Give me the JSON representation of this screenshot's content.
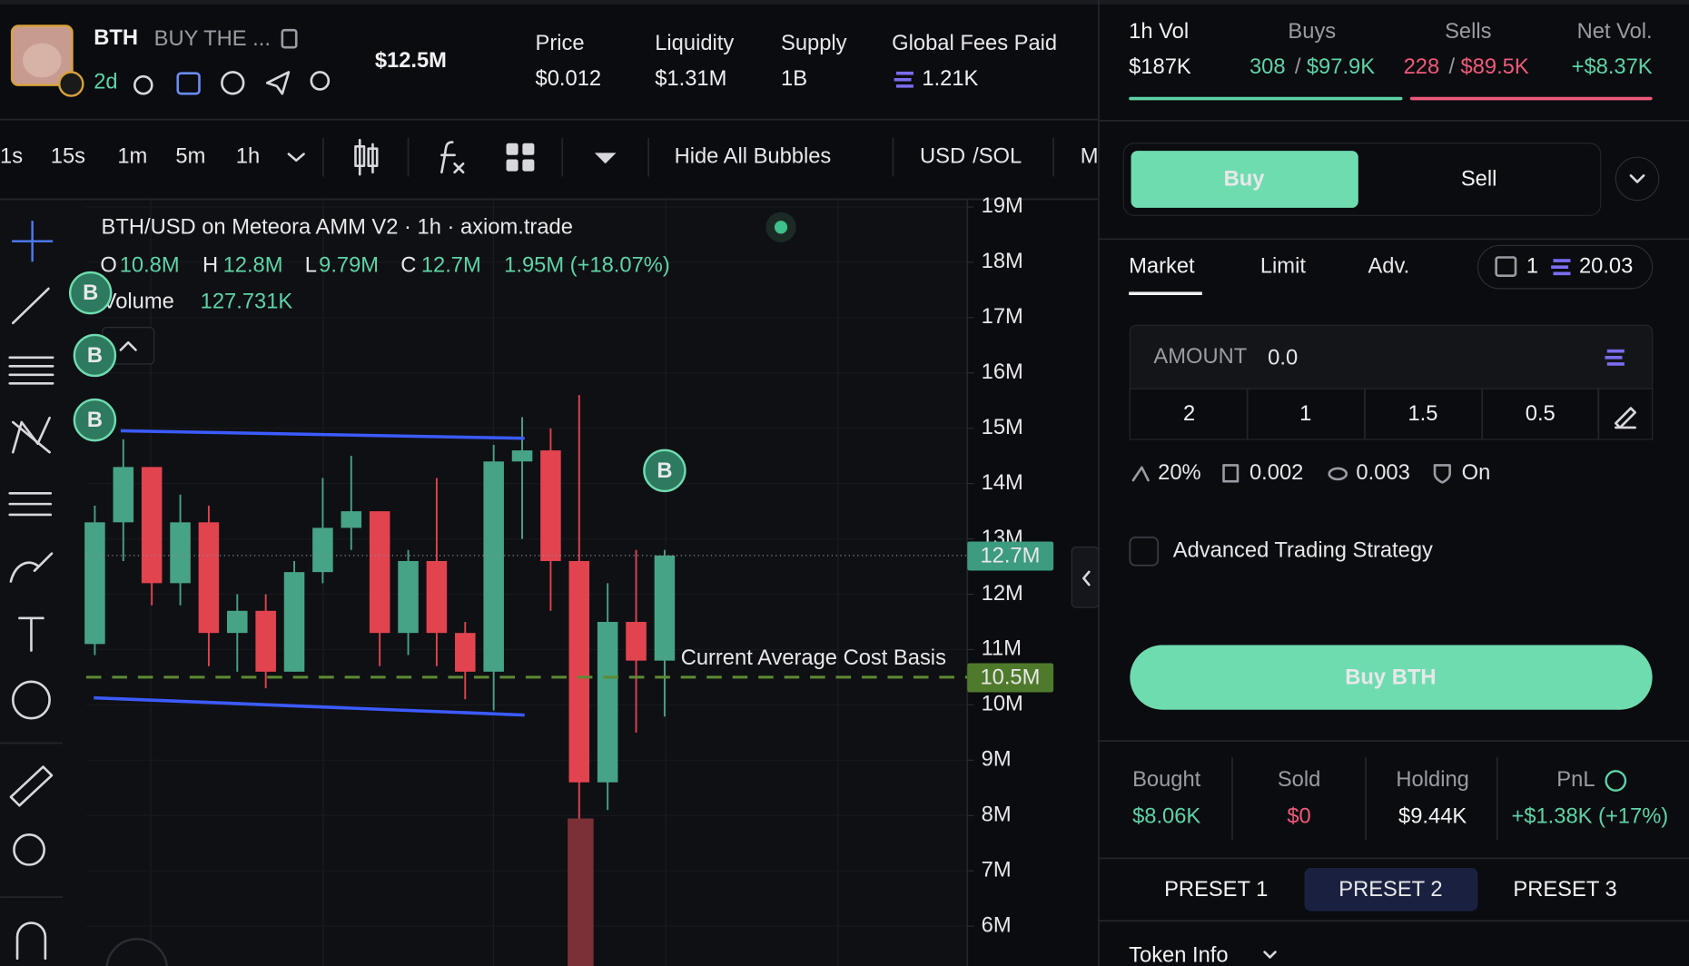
{
  "header": {
    "ticker": "BTH",
    "name": "BUY THE ...",
    "age": "2d",
    "market_cap": "$12.5M",
    "stats": [
      {
        "label": "Price",
        "value": "$0.012"
      },
      {
        "label": "Liquidity",
        "value": "$1.31M"
      },
      {
        "label": "Supply",
        "value": "1B"
      },
      {
        "label": "Global Fees Paid",
        "value": "1.21K"
      }
    ]
  },
  "toolbar": {
    "intervals": [
      "1s",
      "15s",
      "1m",
      "5m",
      "1h"
    ],
    "hide_bubbles": "Hide All Bubbles",
    "currency": "USD",
    "currency_alt": "/SOL",
    "more": "M"
  },
  "chart_data": {
    "type": "candlestick",
    "title": "BTH/USD on Meteora AMM V2 · 1h · axiom.trade",
    "legend": {
      "o_label": "O",
      "o": "10.8M",
      "h_label": "H",
      "h": "12.8M",
      "l_label": "L",
      "l": "9.79M",
      "c_label": "C",
      "c": "12.7M",
      "change": "1.95M (+18.07%)"
    },
    "volume_label": "Volume",
    "volume_value": "127.731K",
    "open": [
      11.1,
      13.3,
      14.3,
      12.2,
      13.3,
      11.3,
      11.7,
      10.6,
      12.4,
      13.2,
      13.5,
      11.3,
      12.6,
      11.3,
      10.6,
      14.4,
      14.6,
      12.6,
      8.6,
      11.5,
      10.8
    ],
    "high": [
      13.6,
      14.8,
      14.3,
      13.8,
      13.6,
      12.0,
      12.0,
      12.6,
      14.1,
      14.5,
      13.5,
      12.8,
      14.1,
      11.5,
      14.7,
      15.2,
      15.0,
      15.6,
      12.2,
      12.8,
      12.8
    ],
    "low": [
      10.9,
      12.6,
      11.8,
      11.8,
      10.7,
      10.6,
      10.3,
      10.6,
      12.2,
      12.8,
      10.7,
      10.9,
      10.7,
      10.1,
      9.9,
      13.0,
      11.7,
      7.9,
      8.1,
      9.5,
      9.79
    ],
    "close": [
      13.3,
      14.3,
      12.2,
      13.3,
      11.3,
      11.7,
      10.6,
      12.4,
      13.2,
      13.5,
      11.3,
      12.6,
      11.3,
      10.6,
      14.4,
      14.6,
      12.6,
      8.6,
      11.5,
      10.8,
      12.7
    ],
    "up_color": "#47a386",
    "down_color": "#e2444f",
    "ylim": [
      5.28,
      19.14
    ],
    "yticks": [
      {
        "value": 19,
        "label": "19M"
      },
      {
        "value": 18,
        "label": "18M"
      },
      {
        "value": 17,
        "label": "17M"
      },
      {
        "value": 16,
        "label": "16M"
      },
      {
        "value": 15,
        "label": "15M"
      },
      {
        "value": 14,
        "label": "14M"
      },
      {
        "value": 13,
        "label": "13M"
      },
      {
        "value": 12,
        "label": "12M"
      },
      {
        "value": 11,
        "label": "11M"
      },
      {
        "value": 10,
        "label": "10M"
      },
      {
        "value": 9,
        "label": "9M"
      },
      {
        "value": 8,
        "label": "8M"
      },
      {
        "value": 7,
        "label": "7M"
      },
      {
        "value": 6,
        "label": "6M"
      }
    ],
    "grid": true,
    "price_line": {
      "value": 12.7,
      "label": "12.7M"
    },
    "cost_basis": {
      "value": 10.5,
      "label": "10.5M",
      "text": "Current Average Cost Basis"
    },
    "bubble_label": "B"
  },
  "volume": {
    "label": "1h Vol",
    "value": "$187K",
    "buys_label": "Buys",
    "buys_count": "308",
    "buys_amount": "$97.9K",
    "sells_label": "Sells",
    "sells_count": "228",
    "sells_amount": "$89.5K",
    "separator": "/",
    "net_label": "Net Vol.",
    "net_value": "+$8.37K"
  },
  "trade": {
    "buy_tab": "Buy",
    "sell_tab": "Sell",
    "order_tabs": [
      "Market",
      "Limit",
      "Adv."
    ],
    "wallets": "1",
    "balance": "20.03",
    "amount_label": "AMOUNT",
    "amount_placeholder": "0.0",
    "quick_amounts": [
      "2",
      "1",
      "1.5",
      "0.5"
    ],
    "slippage": "20%",
    "priority": "0.002",
    "bribe": "0.003",
    "mev": "On",
    "advanced": "Advanced Trading Strategy",
    "submit": "Buy BTH"
  },
  "position": [
    {
      "label": "Bought",
      "value": "$8.06K"
    },
    {
      "label": "Sold",
      "value": "$0"
    },
    {
      "label": "Holding",
      "value": "$9.44K"
    },
    {
      "label": "PnL",
      "value": "+$1.38K (+17%)"
    }
  ],
  "presets": [
    "PRESET 1",
    "PRESET 2",
    "PRESET 3"
  ],
  "token_info": "Token Info"
}
